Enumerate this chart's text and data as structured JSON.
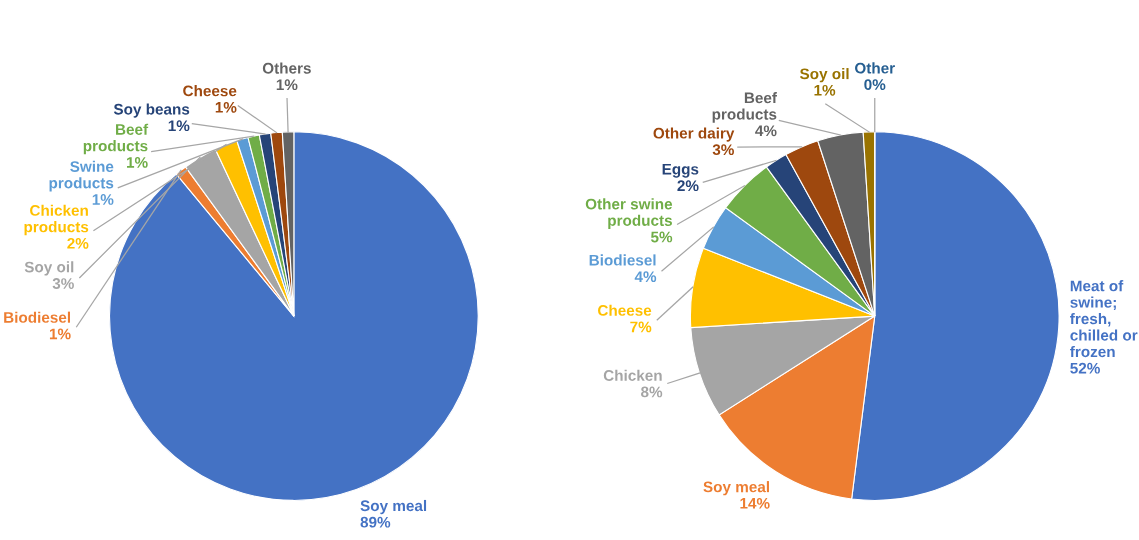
{
  "chart_data": [
    {
      "type": "pie",
      "categories": [
        "Soy meal",
        "Biodiesel",
        "Soy oil",
        "Chicken products",
        "Swine products",
        "Beef products",
        "Soy beans",
        "Cheese",
        "Others"
      ],
      "values": [
        89,
        1,
        3,
        2,
        1,
        1,
        1,
        1,
        1
      ],
      "value_labels": [
        "89%",
        "1%",
        "3%",
        "2%",
        "1%",
        "1%",
        "1%",
        "1%",
        "1%"
      ],
      "colors": [
        "#4472c4",
        "#ed7d31",
        "#a5a5a5",
        "#ffc000",
        "#5b9bd5",
        "#70ad47",
        "#264478",
        "#9e480e",
        "#636363"
      ],
      "legend": false
    },
    {
      "type": "pie",
      "categories": [
        "Meat of swine; fresh, chilled or frozen",
        "Soy meal",
        "Chicken",
        "Cheese",
        "Biodiesel",
        "Other swine products",
        "Eggs",
        "Other dairy",
        "Beef products",
        "Soy oil",
        "Other"
      ],
      "values": [
        52,
        14,
        8,
        7,
        4,
        5,
        2,
        3,
        4,
        1,
        0
      ],
      "value_labels": [
        "52%",
        "14%",
        "8%",
        "7%",
        "4%",
        "5%",
        "2%",
        "3%",
        "4%",
        "1%",
        "0%"
      ],
      "colors": [
        "#4472c4",
        "#ed7d31",
        "#a5a5a5",
        "#ffc000",
        "#5b9bd5",
        "#70ad47",
        "#264478",
        "#9e480e",
        "#636363",
        "#997300",
        "#255e91"
      ],
      "legend": false
    }
  ]
}
